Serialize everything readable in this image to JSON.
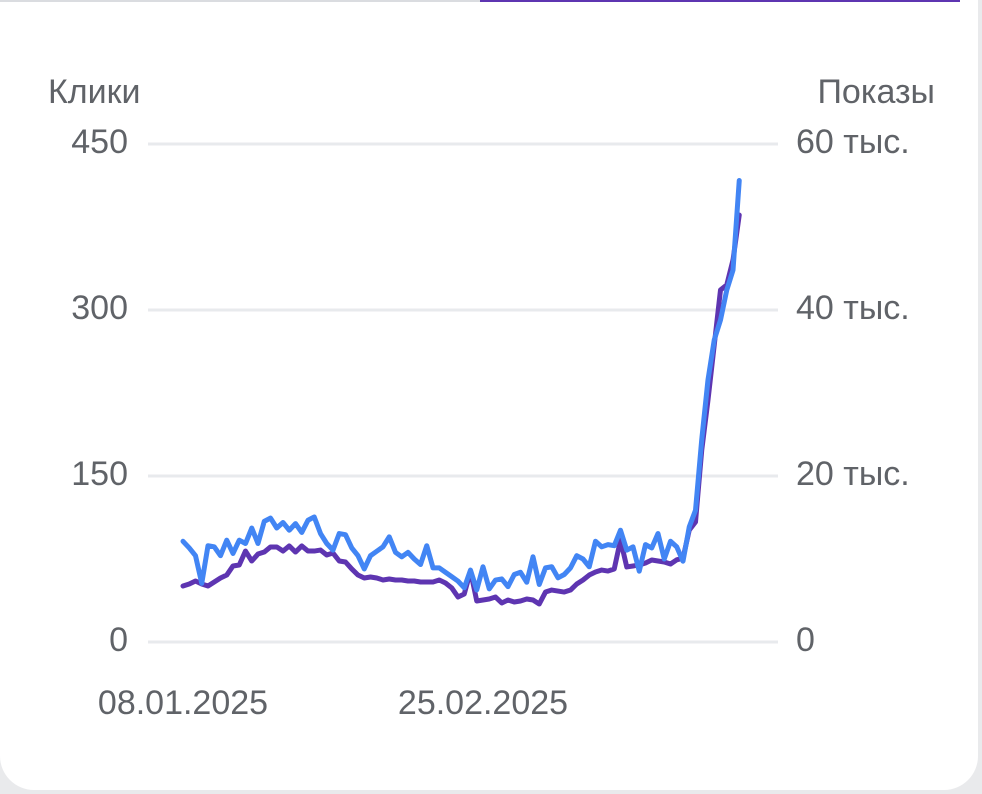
{
  "chart_data": {
    "type": "line",
    "ylabel": "Клики",
    "y2label": "Показы",
    "categories": [
      "08.01.2025",
      null,
      null,
      null,
      null,
      null,
      null,
      null,
      null,
      null,
      null,
      null,
      null,
      null,
      null,
      null,
      null,
      null,
      null,
      null,
      null,
      null,
      null,
      null,
      null,
      null,
      null,
      null,
      null,
      null,
      null,
      null,
      null,
      null,
      null,
      null,
      null,
      null,
      null,
      null,
      null,
      null,
      null,
      null,
      null,
      null,
      null,
      null,
      "25.02.2025",
      null,
      null,
      null,
      null,
      null,
      null,
      null,
      null,
      null,
      null,
      null,
      null,
      null,
      null,
      null,
      null,
      null,
      null,
      null,
      null,
      null,
      null,
      null,
      null,
      null,
      null,
      null,
      null,
      null,
      null,
      null,
      null,
      null,
      null,
      null,
      null,
      null,
      null,
      null,
      null,
      null
    ],
    "series": [
      {
        "color": "#4285f4",
        "axis": "y",
        "values": [
          91,
          85,
          78,
          53,
          87,
          86,
          78,
          92,
          80,
          92,
          89,
          103,
          89,
          109,
          112,
          103,
          108,
          101,
          107,
          99,
          110,
          113,
          98,
          89,
          83,
          98,
          97,
          85,
          78,
          66,
          78,
          82,
          86,
          95,
          81,
          77,
          81,
          75,
          70,
          87,
          67,
          67,
          63,
          59,
          55,
          49,
          65,
          47,
          68,
          48,
          56,
          57,
          50,
          61,
          63,
          54,
          77,
          52,
          67,
          68,
          58,
          61,
          67,
          78,
          75,
          68,
          91,
          86,
          88,
          87,
          101,
          83,
          86,
          64,
          88,
          85,
          98,
          75,
          91,
          86,
          73,
          104,
          119,
          183,
          237,
          273,
          291,
          318,
          336,
          417
        ]
      },
      {
        "color": "#5e35b1",
        "axis": "y2",
        "values": [
          6750,
          6990,
          7350,
          6990,
          6750,
          7230,
          7710,
          8070,
          9160,
          9280,
          10960,
          9760,
          10600,
          10840,
          11450,
          11450,
          10960,
          11570,
          10840,
          11570,
          10960,
          10960,
          11080,
          10480,
          10720,
          9760,
          9640,
          8800,
          8070,
          7710,
          7830,
          7710,
          7470,
          7590,
          7470,
          7470,
          7350,
          7350,
          7230,
          7230,
          7230,
          7470,
          7110,
          6510,
          5420,
          5780,
          8550,
          4940,
          5060,
          5180,
          5420,
          4700,
          5060,
          4820,
          4940,
          5180,
          5060,
          4580,
          6020,
          6260,
          6140,
          6020,
          6260,
          6990,
          7470,
          8070,
          8430,
          8670,
          8550,
          8800,
          12290,
          9040,
          9160,
          9280,
          9520,
          9880,
          9760,
          9640,
          9400,
          9900,
          10100,
          13490,
          14460,
          23130,
          29160,
          35780,
          42410,
          43010,
          46020,
          51450
        ]
      }
    ],
    "ylim": [
      0,
      450
    ],
    "yticks": [
      0,
      150,
      300,
      450
    ],
    "y2lim": [
      0,
      60000
    ],
    "y2ticks": [
      0,
      {
        "value": 20000,
        "label": "20 тыс."
      },
      {
        "value": 40000,
        "label": "40 тыс."
      },
      {
        "value": 60000,
        "label": "60 тыс."
      }
    ],
    "grid": true
  }
}
